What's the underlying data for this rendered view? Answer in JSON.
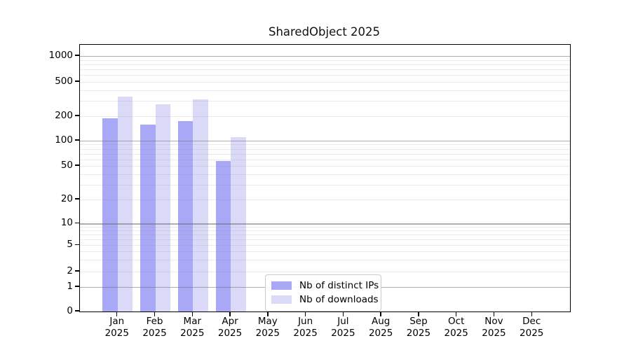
{
  "title": "SharedObject 2025",
  "colors": {
    "distinct_ips": "#a8a8f6",
    "downloads": "#dadaf8",
    "grid_major": "rgba(110,110,110,0.55)",
    "grid_minor": "rgba(130,130,130,0.16)",
    "axis": "#000000",
    "legend_border": "#cbcbcb",
    "background": "#ffffff"
  },
  "legend": {
    "items": [
      {
        "label": "Nb of distinct IPs",
        "color_key": "distinct_ips"
      },
      {
        "label": "Nb of downloads",
        "color_key": "downloads"
      }
    ]
  },
  "y_axis": {
    "tick_values": [
      0,
      1,
      2,
      5,
      10,
      20,
      50,
      100,
      200,
      500,
      1000
    ],
    "tick_labels": [
      "0",
      "1",
      "2",
      "5",
      "10",
      "20",
      "50",
      "100",
      "200",
      "500",
      "1000"
    ]
  },
  "x_axis": {
    "year": "2025",
    "months": [
      "Jan",
      "Feb",
      "Mar",
      "Apr",
      "May",
      "Jun",
      "Jul",
      "Aug",
      "Sep",
      "Oct",
      "Nov",
      "Dec"
    ]
  },
  "chart_data": {
    "type": "bar",
    "title": "SharedObject 2025",
    "categories": [
      "Jan 2025",
      "Feb 2025",
      "Mar 2025",
      "Apr 2025",
      "May 2025",
      "Jun 2025",
      "Jul 2025",
      "Aug 2025",
      "Sep 2025",
      "Oct 2025",
      "Nov 2025",
      "Dec 2025"
    ],
    "series": [
      {
        "name": "Nb of distinct IPs",
        "color": "#a8a8f6",
        "values": [
          190,
          157,
          175,
          57,
          0,
          0,
          0,
          0,
          0,
          0,
          0,
          0
        ]
      },
      {
        "name": "Nb of downloads",
        "color": "#dadaf8",
        "values": [
          340,
          273,
          315,
          110,
          0,
          0,
          0,
          0,
          0,
          0,
          0,
          0
        ]
      }
    ],
    "xlabel": "",
    "ylabel": "",
    "yscale": "symlog-like (linear 0-1, log above)",
    "y_ticks": [
      0,
      1,
      2,
      5,
      10,
      20,
      50,
      100,
      200,
      500,
      1000
    ],
    "ylim": [
      0,
      1500
    ],
    "grid": "horizontal, major (decades) + minor",
    "legend_position": "inside lower-center"
  }
}
